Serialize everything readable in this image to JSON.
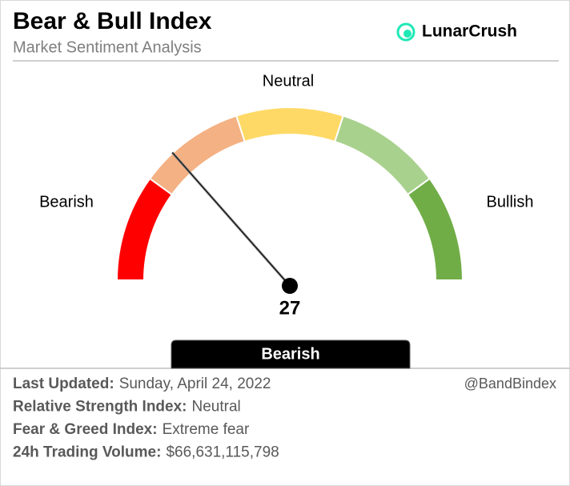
{
  "chart_data": {
    "type": "gauge",
    "title": "Bear & Bull Index",
    "subtitle": "Market Sentiment Analysis",
    "brand": "LunarCrush",
    "range_labels": [
      "Bearish",
      "Neutral",
      "Bullish"
    ],
    "value": 27,
    "range": [
      0,
      100
    ],
    "bands": [
      0,
      20,
      40,
      60,
      80,
      100
    ],
    "band_colors": [
      "#ff0000",
      "#f4b183",
      "#ffd966",
      "#a9d18e",
      "#70ad47"
    ],
    "status": "Bearish"
  },
  "footer": {
    "rows": [
      {
        "label": "Last Updated:",
        "value": "Sunday, April 24, 2022"
      },
      {
        "label": "Relative Strength Index:",
        "value": "Neutral"
      },
      {
        "label": "Fear & Greed Index:",
        "value": "Extreme fear"
      },
      {
        "label": "24h Trading Volume:",
        "value": "$66,631,115,798"
      }
    ],
    "handle": "@BandBindex"
  }
}
